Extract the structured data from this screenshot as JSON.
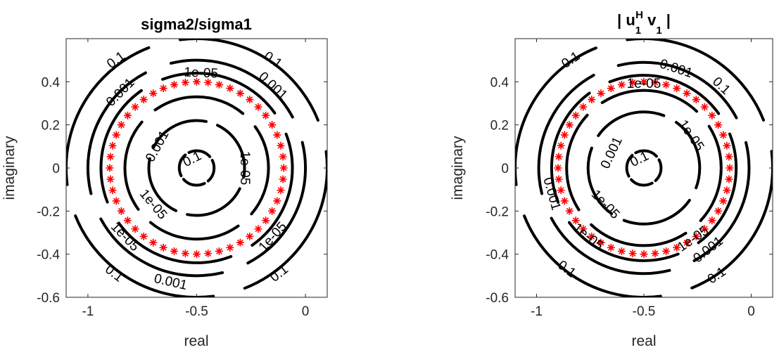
{
  "chart_data": [
    {
      "type": "contour",
      "title": "sigma2/sigma1",
      "xlabel": "real",
      "ylabel": "imaginary",
      "xlim": [
        -1.1,
        0.1
      ],
      "ylim": [
        -0.6,
        0.6
      ],
      "xticks": [
        -1,
        -0.5,
        0
      ],
      "xtick_labels": [
        "-1",
        "-0.5",
        "0"
      ],
      "yticks": [
        -0.6,
        -0.4,
        -0.2,
        0,
        0.2,
        0.4
      ],
      "ytick_labels": [
        "-0.6",
        "-0.4",
        "-0.2",
        "0",
        "0.2",
        "0.4"
      ],
      "center": [
        -0.5,
        0
      ],
      "contours": [
        {
          "level": "0.1",
          "radius": 0.6
        },
        {
          "level": "0.001",
          "radius": 0.5
        },
        {
          "level": "1e-05",
          "radius": 0.44
        },
        {
          "level": "1e-05",
          "radius": 0.33
        },
        {
          "level": "0.001",
          "radius": 0.22
        },
        {
          "level": "0.1",
          "radius": 0.08
        }
      ],
      "contour_labels": [
        {
          "text": "0.1",
          "x": -0.87,
          "y": 0.5
        },
        {
          "text": "0.1",
          "x": -0.15,
          "y": 0.5
        },
        {
          "text": "0.001",
          "x": -0.85,
          "y": 0.35
        },
        {
          "text": "0.001",
          "x": -0.15,
          "y": 0.38
        },
        {
          "text": "1e-05",
          "x": -0.48,
          "y": 0.44
        },
        {
          "text": "0.001",
          "x": -0.68,
          "y": 0.1
        },
        {
          "text": "0.1",
          "x": -0.52,
          "y": 0.04
        },
        {
          "text": "1e-05",
          "x": -0.28,
          "y": 0.0
        },
        {
          "text": "1e-05",
          "x": -0.7,
          "y": -0.17
        },
        {
          "text": "1e-05",
          "x": -0.83,
          "y": -0.32
        },
        {
          "text": "1e-05",
          "x": -0.15,
          "y": -0.32
        },
        {
          "text": "0.1",
          "x": -0.88,
          "y": -0.49
        },
        {
          "text": "0.001",
          "x": -0.62,
          "y": -0.53
        },
        {
          "text": "0.1",
          "x": -0.12,
          "y": -0.49
        }
      ],
      "marker_series": {
        "marker": "*",
        "color": "#ff0000",
        "center": [
          -0.5,
          0
        ],
        "radius": 0.4,
        "count": 48
      }
    },
    {
      "type": "contour",
      "title": "| u1H v1 |",
      "title_parts": [
        "| u",
        "1",
        "H",
        " v",
        "1",
        " |"
      ],
      "xlabel": "real",
      "ylabel": "imaginary",
      "xlim": [
        -1.1,
        0.1
      ],
      "ylim": [
        -0.6,
        0.6
      ],
      "xticks": [
        -1,
        -0.5,
        0
      ],
      "xtick_labels": [
        "-1",
        "-0.5",
        "0"
      ],
      "yticks": [
        -0.6,
        -0.4,
        -0.2,
        0,
        0.2,
        0.4
      ],
      "ytick_labels": [
        "-0.6",
        "-0.4",
        "-0.2",
        "0",
        "0.2",
        "0.4"
      ],
      "center": [
        -0.5,
        0
      ],
      "contours": [
        {
          "level": "0.1",
          "radius": 0.6
        },
        {
          "level": "0.001",
          "radius": 0.49
        },
        {
          "level": "1e-05",
          "radius": 0.43
        },
        {
          "level": "1e-05",
          "radius": 0.36
        },
        {
          "level": "0.001",
          "radius": 0.26
        },
        {
          "level": "0.1",
          "radius": 0.08
        }
      ],
      "contour_labels": [
        {
          "text": "0.1",
          "x": -0.84,
          "y": 0.5
        },
        {
          "text": "0.1",
          "x": -0.14,
          "y": 0.38
        },
        {
          "text": "0.001",
          "x": -0.35,
          "y": 0.46
        },
        {
          "text": "1e-05",
          "x": -0.5,
          "y": 0.39
        },
        {
          "text": "0.001",
          "x": -0.65,
          "y": 0.07
        },
        {
          "text": "0.1",
          "x": -0.52,
          "y": 0.04
        },
        {
          "text": "1e-05",
          "x": -0.28,
          "y": 0.15
        },
        {
          "text": "0.001",
          "x": -0.93,
          "y": -0.12
        },
        {
          "text": "1e-05",
          "x": -0.68,
          "y": -0.17
        },
        {
          "text": "1e-05",
          "x": -0.76,
          "y": -0.32
        },
        {
          "text": "1e-05",
          "x": -0.27,
          "y": -0.33
        },
        {
          "text": "0.001",
          "x": -0.2,
          "y": -0.38
        },
        {
          "text": "0.1",
          "x": -0.86,
          "y": -0.47
        },
        {
          "text": "0.1",
          "x": -0.16,
          "y": -0.5
        }
      ],
      "marker_series": {
        "marker": "*",
        "color": "#ff0000",
        "center": [
          -0.5,
          0
        ],
        "radius": 0.4,
        "count": 48
      }
    }
  ]
}
